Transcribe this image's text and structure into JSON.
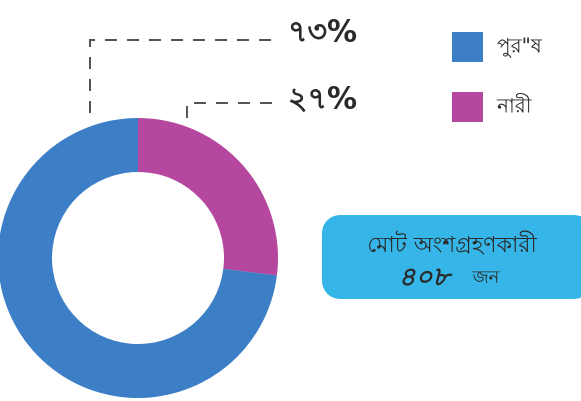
{
  "chart_data": {
    "type": "donut",
    "categories": [
      "পুর\"ষ",
      "নারী"
    ],
    "values": [
      73,
      27
    ],
    "value_labels": [
      "৭৩%",
      "২৭%"
    ],
    "colors": [
      "#3d7fc6",
      "#b5479f"
    ],
    "legend": "top-right",
    "annotation": {
      "title": "মোট অংশগ্রহণকারী",
      "total": "৪০৮",
      "unit": "জন"
    }
  }
}
